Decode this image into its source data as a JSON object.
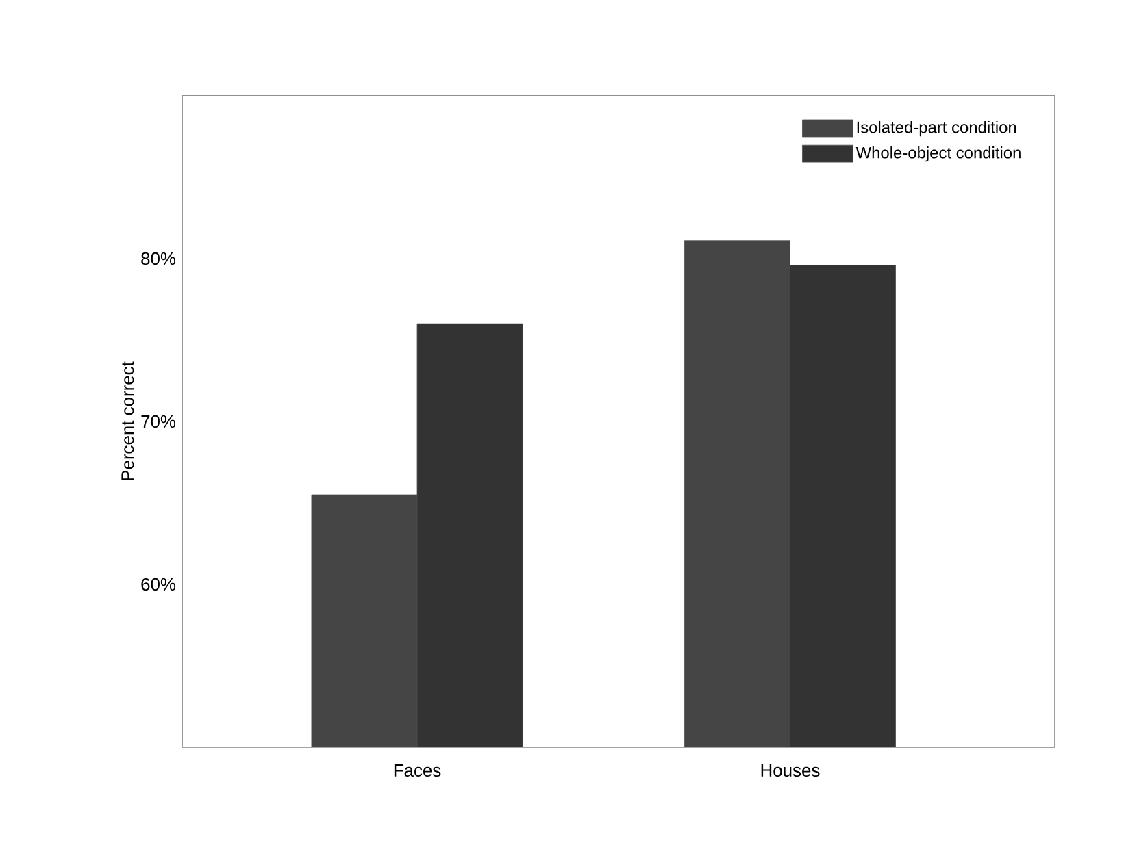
{
  "chart_data": {
    "type": "bar",
    "ylabel": "Percent correct",
    "categories": [
      "Faces",
      "Houses"
    ],
    "series": [
      {
        "name": "Isolated-part condition",
        "color": "#454545",
        "values": [
          65.5,
          81.1
        ]
      },
      {
        "name": "Whole-object condition",
        "color": "#333333",
        "values": [
          76.0,
          79.6
        ]
      }
    ],
    "ylim": [
      50,
      90
    ],
    "yticks": [
      {
        "value": 60,
        "label": "60%"
      },
      {
        "value": 70,
        "label": "70%"
      },
      {
        "value": 80,
        "label": "80%"
      }
    ],
    "legend": "top right"
  }
}
